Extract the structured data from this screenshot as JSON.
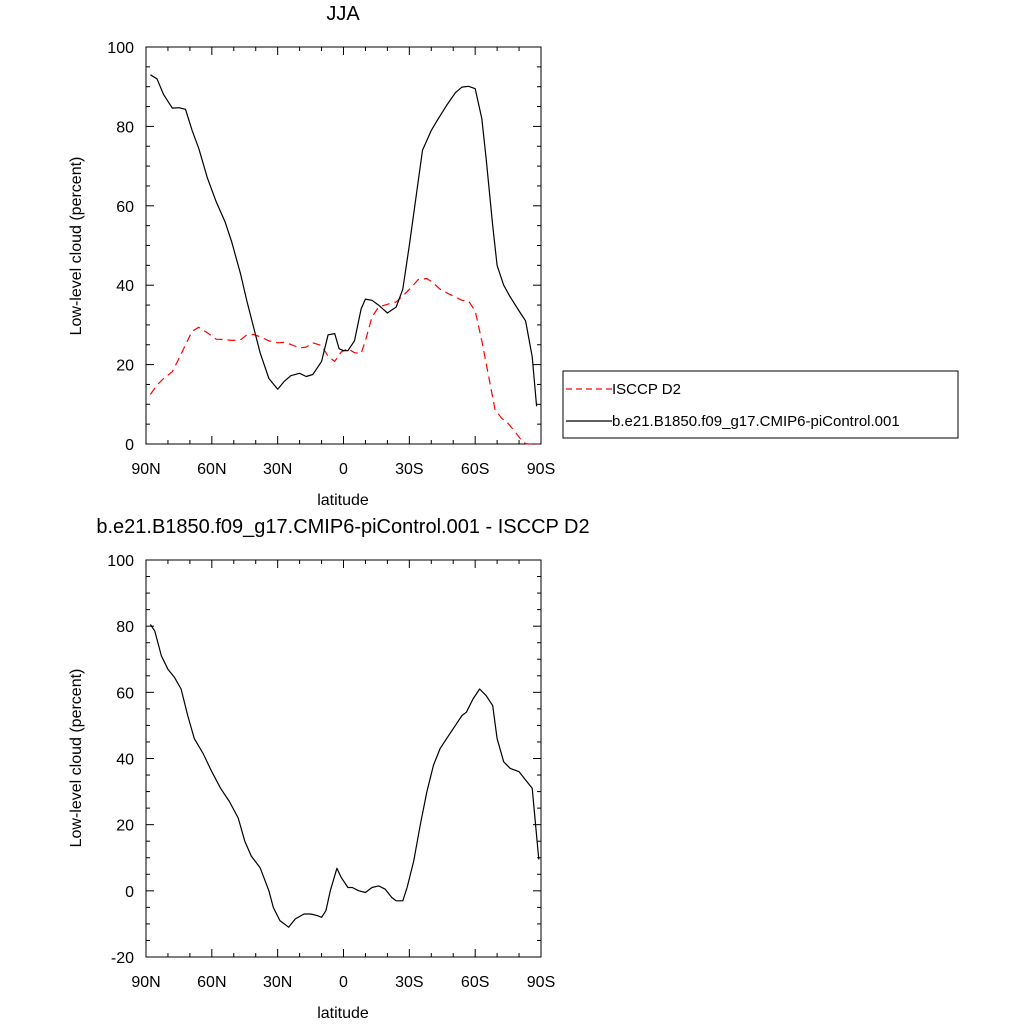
{
  "chart_data": [
    {
      "type": "line",
      "title": "JJA",
      "xlabel": "latitude",
      "ylabel": "Low-level cloud (percent)",
      "xlim": [
        90,
        -90
      ],
      "ylim": [
        0,
        100
      ],
      "x_ticks": [
        {
          "value": 90,
          "label": "90N"
        },
        {
          "value": 60,
          "label": "60N"
        },
        {
          "value": 30,
          "label": "30N"
        },
        {
          "value": 0,
          "label": "0"
        },
        {
          "value": -30,
          "label": "30S"
        },
        {
          "value": -60,
          "label": "60S"
        },
        {
          "value": -90,
          "label": "90S"
        }
      ],
      "y_ticks": [
        0,
        20,
        40,
        60,
        80,
        100
      ],
      "legend": {
        "placement": "right",
        "entries": [
          "ISCCP D2",
          "b.e21.B1850.f09_g17.CMIP6-piControl.001"
        ]
      },
      "series": [
        {
          "name": "ISCCP D2",
          "color": "#ff0000",
          "dash": "dashed",
          "x": [
            88,
            85,
            82,
            78,
            75,
            72,
            69,
            66,
            62,
            58,
            54,
            51,
            47,
            44,
            41,
            38,
            34,
            30,
            27,
            24,
            20,
            17,
            14,
            10,
            7,
            4,
            1,
            -2,
            -5,
            -8,
            -10,
            -13,
            -16,
            -20,
            -24,
            -27,
            -31,
            -34,
            -38,
            -41,
            -44,
            -48,
            -51,
            -54,
            -57,
            -60,
            -63,
            -66,
            -69,
            -72,
            -75,
            -78,
            -81,
            -83,
            -85,
            -87,
            -89
          ],
          "values": [
            12.5,
            14.8,
            16.5,
            18.2,
            21.5,
            25,
            28.4,
            29.4,
            28,
            26.4,
            26.3,
            26.1,
            26.2,
            27.5,
            27.6,
            27,
            26,
            25.5,
            25.6,
            25.1,
            24.2,
            24.4,
            25.5,
            24.8,
            22.1,
            20.8,
            23.2,
            24,
            23,
            22.8,
            26,
            32,
            34.5,
            35.2,
            35.8,
            37.3,
            39.5,
            41.4,
            41.7,
            40.5,
            39,
            37.8,
            37,
            36.2,
            36,
            33.5,
            26,
            17.5,
            8.8,
            6.5,
            5.2,
            3.2,
            1,
            0.1,
            0,
            0,
            0
          ]
        },
        {
          "name": "b.e21.B1850.f09_g17.CMIP6-piControl.001",
          "color": "#000000",
          "dash": "solid",
          "x": [
            88,
            85,
            82,
            78,
            75,
            72,
            69,
            66,
            62,
            58,
            54,
            51,
            47,
            44,
            41,
            38,
            34,
            30,
            27,
            24,
            20,
            17,
            14,
            10,
            7,
            4,
            2,
            0,
            -2,
            -5,
            -8,
            -10,
            -13,
            -16,
            -20,
            -24,
            -27,
            -30,
            -33,
            -36,
            -40,
            -43,
            -47,
            -51,
            -54,
            -57,
            -60,
            -63,
            -65,
            -68,
            -70,
            -73,
            -76,
            -80,
            -83,
            -86,
            -88
          ],
          "values": [
            93,
            92,
            88,
            84.6,
            84.7,
            84.3,
            79,
            74.5,
            67,
            61,
            56,
            51,
            43,
            36,
            29.5,
            23,
            16.5,
            13.8,
            15.8,
            17.2,
            17.8,
            17,
            17.5,
            20.8,
            27.5,
            27.8,
            24,
            23.5,
            23.5,
            26,
            34,
            36.5,
            36.2,
            35,
            33,
            34.5,
            39,
            50,
            62,
            74,
            79,
            81.8,
            85.3,
            88.5,
            89.9,
            90.1,
            89.5,
            82,
            72,
            55,
            45,
            40,
            37,
            33.5,
            31,
            22,
            9.5
          ]
        }
      ]
    },
    {
      "type": "line",
      "title": "b.e21.B1850.f09_g17.CMIP6-piControl.001 - ISCCP D2",
      "xlabel": "latitude",
      "ylabel": "Low-level cloud (percent)",
      "xlim": [
        90,
        -90
      ],
      "ylim": [
        -20,
        100
      ],
      "x_ticks": [
        {
          "value": 90,
          "label": "90N"
        },
        {
          "value": 60,
          "label": "60N"
        },
        {
          "value": 30,
          "label": "30N"
        },
        {
          "value": 0,
          "label": "0"
        },
        {
          "value": -30,
          "label": "30S"
        },
        {
          "value": -60,
          "label": "60S"
        },
        {
          "value": -90,
          "label": "90S"
        }
      ],
      "y_ticks": [
        -20,
        0,
        20,
        40,
        60,
        80,
        100
      ],
      "series": [
        {
          "color": "#000000",
          "dash": "solid",
          "x": [
            88,
            86,
            83,
            80,
            77,
            74,
            71,
            68,
            64,
            60,
            56,
            52,
            48,
            45,
            42,
            38,
            34,
            32,
            29,
            25,
            22,
            18,
            15,
            12,
            10,
            8,
            6,
            3,
            1,
            -2,
            -4,
            -7,
            -10,
            -13,
            -16,
            -19,
            -22,
            -24,
            -27,
            -29,
            -32,
            -35,
            -38,
            -41,
            -44,
            -48,
            -51,
            -54,
            -56,
            -59,
            -62,
            -65,
            -68,
            -70,
            -73,
            -76,
            -80,
            -83,
            -86,
            -89
          ],
          "values": [
            80.5,
            78.5,
            71,
            67,
            64.5,
            61,
            53,
            46,
            41.5,
            36,
            31,
            27,
            22,
            15,
            10.5,
            7,
            0,
            -5,
            -9,
            -11,
            -8.5,
            -7,
            -7,
            -7.5,
            -8,
            -6,
            0,
            6.8,
            4,
            1,
            1,
            0,
            -0.5,
            1,
            1.5,
            0.5,
            -2,
            -3,
            -3,
            1,
            9,
            20,
            30,
            38,
            43,
            47,
            50,
            53,
            54,
            58,
            61,
            59,
            56,
            46,
            39,
            37,
            36,
            33.5,
            31,
            9.5
          ]
        }
      ]
    }
  ]
}
